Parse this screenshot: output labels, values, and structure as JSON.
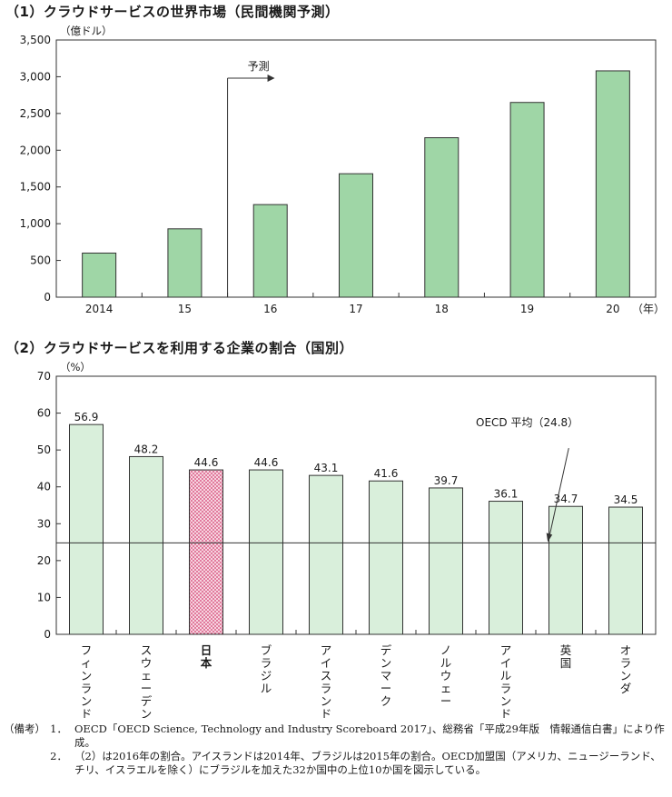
{
  "chart_data": [
    {
      "type": "bar",
      "title": "（1）クラウドサービスの世界市場（民間機関予測）",
      "unit_label": "（億ドル）",
      "x_unit": "（年）",
      "categories": [
        "2014",
        "15",
        "16",
        "17",
        "18",
        "19",
        "20"
      ],
      "values": [
        600,
        930,
        1260,
        1680,
        2170,
        2650,
        3080
      ],
      "ylim": [
        0,
        3500
      ],
      "yticks": [
        "0",
        "500",
        "1,000",
        "1,500",
        "2,000",
        "2,500",
        "3,000",
        "3,500"
      ],
      "forecast_label": "予測",
      "forecast_from": "16",
      "colors": {
        "bar": "#9fd6a6",
        "border": "#333333"
      }
    },
    {
      "type": "bar",
      "title": "（2）クラウドサービスを利用する企業の割合（国別）",
      "unit_label": "（%）",
      "categories": [
        "フィンランド",
        "スウェーデン",
        "日本",
        "ブラジル",
        "アイスランド",
        "デンマーク",
        "ノルウェー",
        "アイルランド",
        "英国",
        "オランダ"
      ],
      "values": [
        56.9,
        48.2,
        44.6,
        44.6,
        43.1,
        41.6,
        39.7,
        36.1,
        34.7,
        34.5
      ],
      "value_labels": [
        "56.9",
        "48.2",
        "44.6",
        "44.6",
        "43.1",
        "41.6",
        "39.7",
        "36.1",
        "34.7",
        "34.5"
      ],
      "highlight": "日本",
      "ylim": [
        0,
        70
      ],
      "yticks": [
        "0",
        "10",
        "20",
        "30",
        "40",
        "50",
        "60",
        "70"
      ],
      "reference": {
        "label": "OECD 平均（24.8）",
        "value": 24.8
      },
      "colors": {
        "bar": "#d9efdb",
        "highlight": "#f4c4d4",
        "highlight_dots": "#d23c6e",
        "border": "#333333"
      }
    }
  ],
  "notes": {
    "label": "（備考）",
    "items": [
      {
        "num": "1．",
        "text": "OECD「OECD Science, Technology and Industry Scoreboard 2017」、総務省「平成29年版　情報通信白書」により作成。"
      },
      {
        "num": "2．",
        "text": "（2）は2016年の割合。アイスランドは2014年、ブラジルは2015年の割合。OECD加盟国（アメリカ、ニュージーランド、チリ、イスラエルを除く）にブラジルを加えた32か国中の上位10か国を図示している。"
      }
    ]
  }
}
